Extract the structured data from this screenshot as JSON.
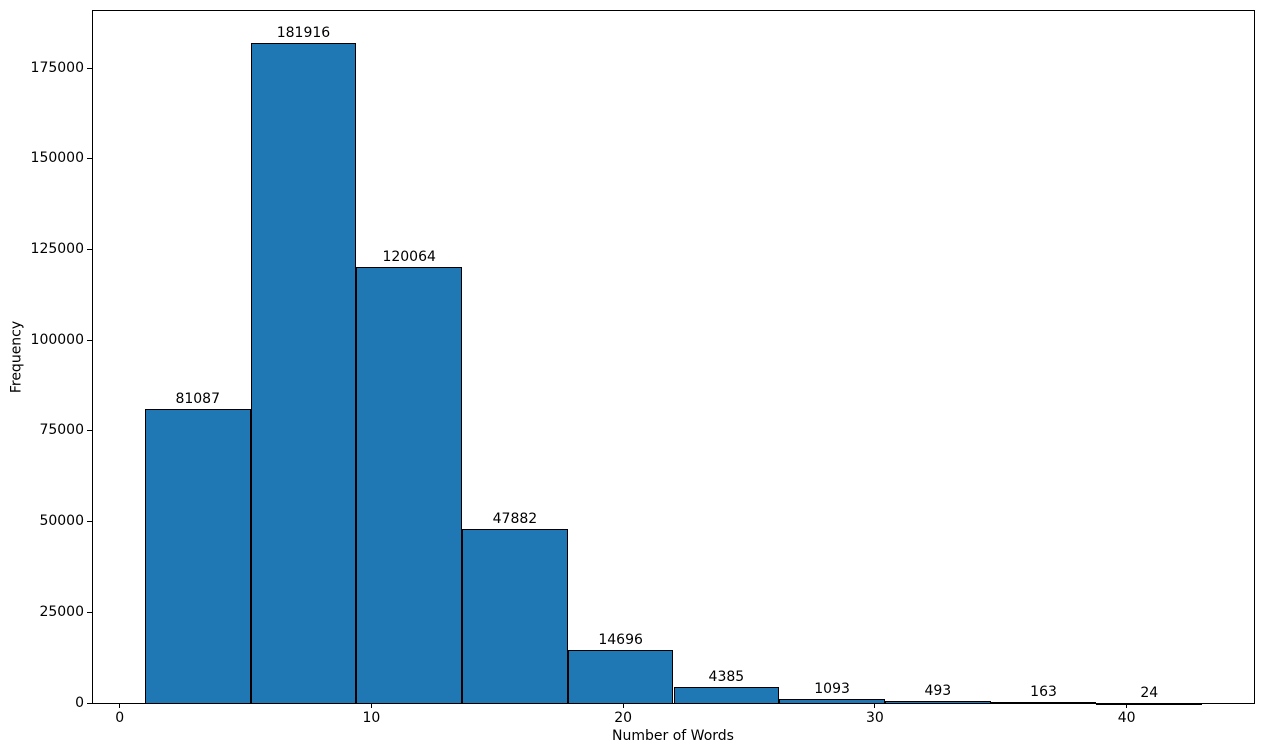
{
  "figure": {
    "background_color": "#ffffff",
    "text_color": "#000000"
  },
  "chart_data": {
    "type": "bar",
    "subtype": "histogram",
    "title": "",
    "xlabel": "Number of Words",
    "ylabel": "Frequency",
    "bar_color": "#1f77b4",
    "bar_edge_color": "#000000",
    "bin_edges": [
      1.0,
      5.2,
      9.4,
      13.6,
      17.8,
      22.0,
      26.2,
      30.4,
      34.6,
      38.8,
      43.0
    ],
    "values": [
      81087,
      181916,
      120064,
      47882,
      14696,
      4385,
      1093,
      493,
      163,
      24
    ],
    "bar_labels": [
      "81087",
      "181916",
      "120064",
      "47882",
      "14696",
      "4385",
      "1093",
      "493",
      "163",
      "24"
    ],
    "xlim": [
      -1.1,
      45.1
    ],
    "ylim": [
      0,
      191012
    ],
    "xticks": [
      0,
      10,
      20,
      30,
      40
    ],
    "xtick_labels": [
      "0",
      "10",
      "20",
      "30",
      "40"
    ],
    "yticks": [
      0,
      25000,
      50000,
      75000,
      100000,
      125000,
      150000,
      175000
    ],
    "ytick_labels": [
      "0",
      "25000",
      "50000",
      "75000",
      "100000",
      "125000",
      "150000",
      "175000"
    ],
    "grid": false,
    "legend": null
  }
}
